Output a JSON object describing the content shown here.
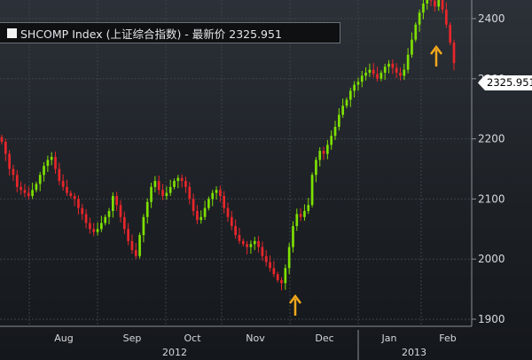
{
  "legend": {
    "text": "SHCOMP Index (上证综合指数) - 最新价 2325.951"
  },
  "last_price_label": "2325.951",
  "colors": {
    "up": "#7ee000",
    "down": "#e8262a",
    "arrow": "#f2a81c"
  },
  "chart_data": {
    "type": "candlestick",
    "title": "",
    "ylim": [
      1880,
      2460
    ],
    "yticks": [
      1900,
      2000,
      2100,
      2200,
      2300,
      2400
    ],
    "x_month_labels": [
      "Aug",
      "Sep",
      "Oct",
      "Nov",
      "Dec",
      "Jan",
      "Feb"
    ],
    "x_year_labels": [
      "2012",
      "2013"
    ],
    "last_price": 2325.951,
    "axis_side": "right",
    "grid": true,
    "annotations": [
      {
        "type": "arrow-up",
        "near": "Dec 2012 low",
        "y": 1940
      },
      {
        "type": "arrow-up",
        "near": "Feb 2013 high",
        "y": 2360
      }
    ],
    "series": [
      {
        "values": [
          2195,
          2175,
          2150,
          2140,
          2120,
          2115,
          2110,
          2105,
          2115,
          2125,
          2140,
          2155,
          2165,
          2170,
          2150,
          2130,
          2120,
          2110,
          2105,
          2100,
          2085,
          2075,
          2060,
          2050,
          2045,
          2050,
          2060,
          2070,
          2080,
          2105,
          2090,
          2070,
          2050,
          2030,
          2015,
          2005,
          2040,
          2070,
          2095,
          2120,
          2130,
          2115,
          2105,
          2110,
          2120,
          2130,
          2135,
          2130,
          2120,
          2100,
          2080,
          2065,
          2070,
          2085,
          2100,
          2110,
          2115,
          2105,
          2085,
          2070,
          2055,
          2040,
          2030,
          2025,
          2020,
          2025,
          2030,
          2020,
          2005,
          1995,
          1985,
          1975,
          1965,
          1960,
          1985,
          2020,
          2055,
          2075,
          2070,
          2080,
          2090,
          2140,
          2165,
          2180,
          2175,
          2190,
          2205,
          2220,
          2240,
          2255,
          2265,
          2280,
          2290,
          2295,
          2305,
          2310,
          2315,
          2308,
          2300,
          2310,
          2320,
          2325,
          2318,
          2310,
          2305,
          2315,
          2340,
          2365,
          2390,
          2410,
          2425,
          2440,
          2430,
          2420,
          2438,
          2415,
          2390,
          2360,
          2325.951
        ]
      }
    ]
  }
}
